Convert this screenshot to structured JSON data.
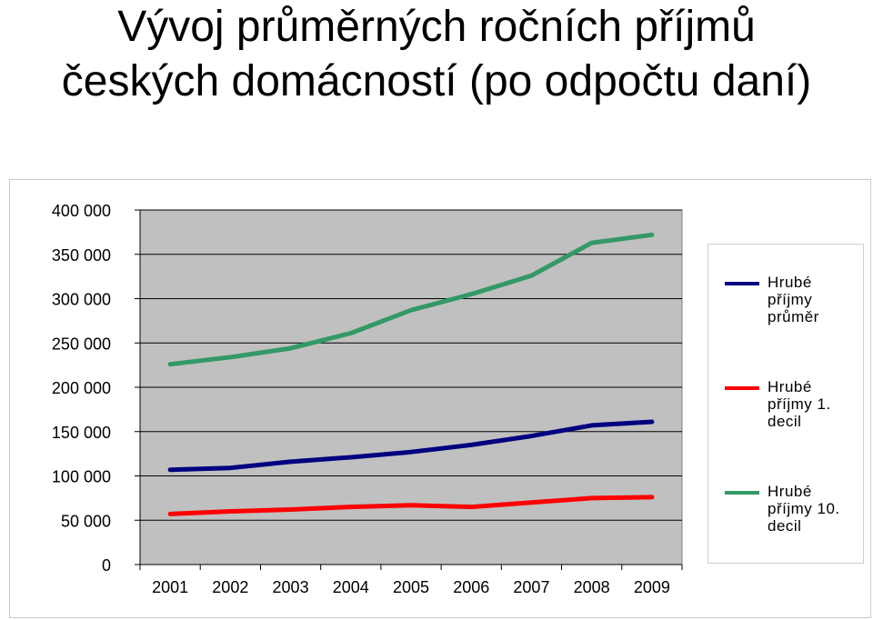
{
  "title": {
    "line1": "Vývoj průměrných ročních příjmů",
    "line2": "českých domácností (po odpočtu daní)"
  },
  "chart_data": {
    "type": "line",
    "x": [
      "2001",
      "2002",
      "2003",
      "2004",
      "2005",
      "2006",
      "2007",
      "2008",
      "2009"
    ],
    "ylim": [
      0,
      400000
    ],
    "yticks": [
      0,
      50000,
      100000,
      150000,
      200000,
      250000,
      300000,
      350000,
      400000
    ],
    "ytick_labels": [
      "0",
      "50 000",
      "100 000",
      "150 000",
      "200 000",
      "250 000",
      "300 000",
      "350 000",
      "400 000"
    ],
    "grid": true,
    "plot_background": "#c0c0c0",
    "legend_position": "right",
    "series": [
      {
        "name": "Hrubé příjmy průměr",
        "legend_lines": [
          "Hrubé",
          "příjmy",
          "průměr"
        ],
        "color": "#000080",
        "values": [
          107000,
          109000,
          116000,
          121000,
          127000,
          135000,
          145000,
          157000,
          161000
        ]
      },
      {
        "name": "Hrubé příjmy 1. decil",
        "legend_lines": [
          "Hrubé",
          "příjmy 1.",
          "decil"
        ],
        "color": "#ff0000",
        "values": [
          57000,
          60000,
          62000,
          65000,
          67000,
          65000,
          70000,
          75000,
          76000
        ]
      },
      {
        "name": "Hrubé příjmy 10. decil",
        "legend_lines": [
          "Hrubé",
          "příjmy 10.",
          "decil"
        ],
        "color": "#339966",
        "values": [
          226000,
          234000,
          244000,
          261000,
          287000,
          305000,
          326000,
          363000,
          372000
        ]
      }
    ]
  }
}
